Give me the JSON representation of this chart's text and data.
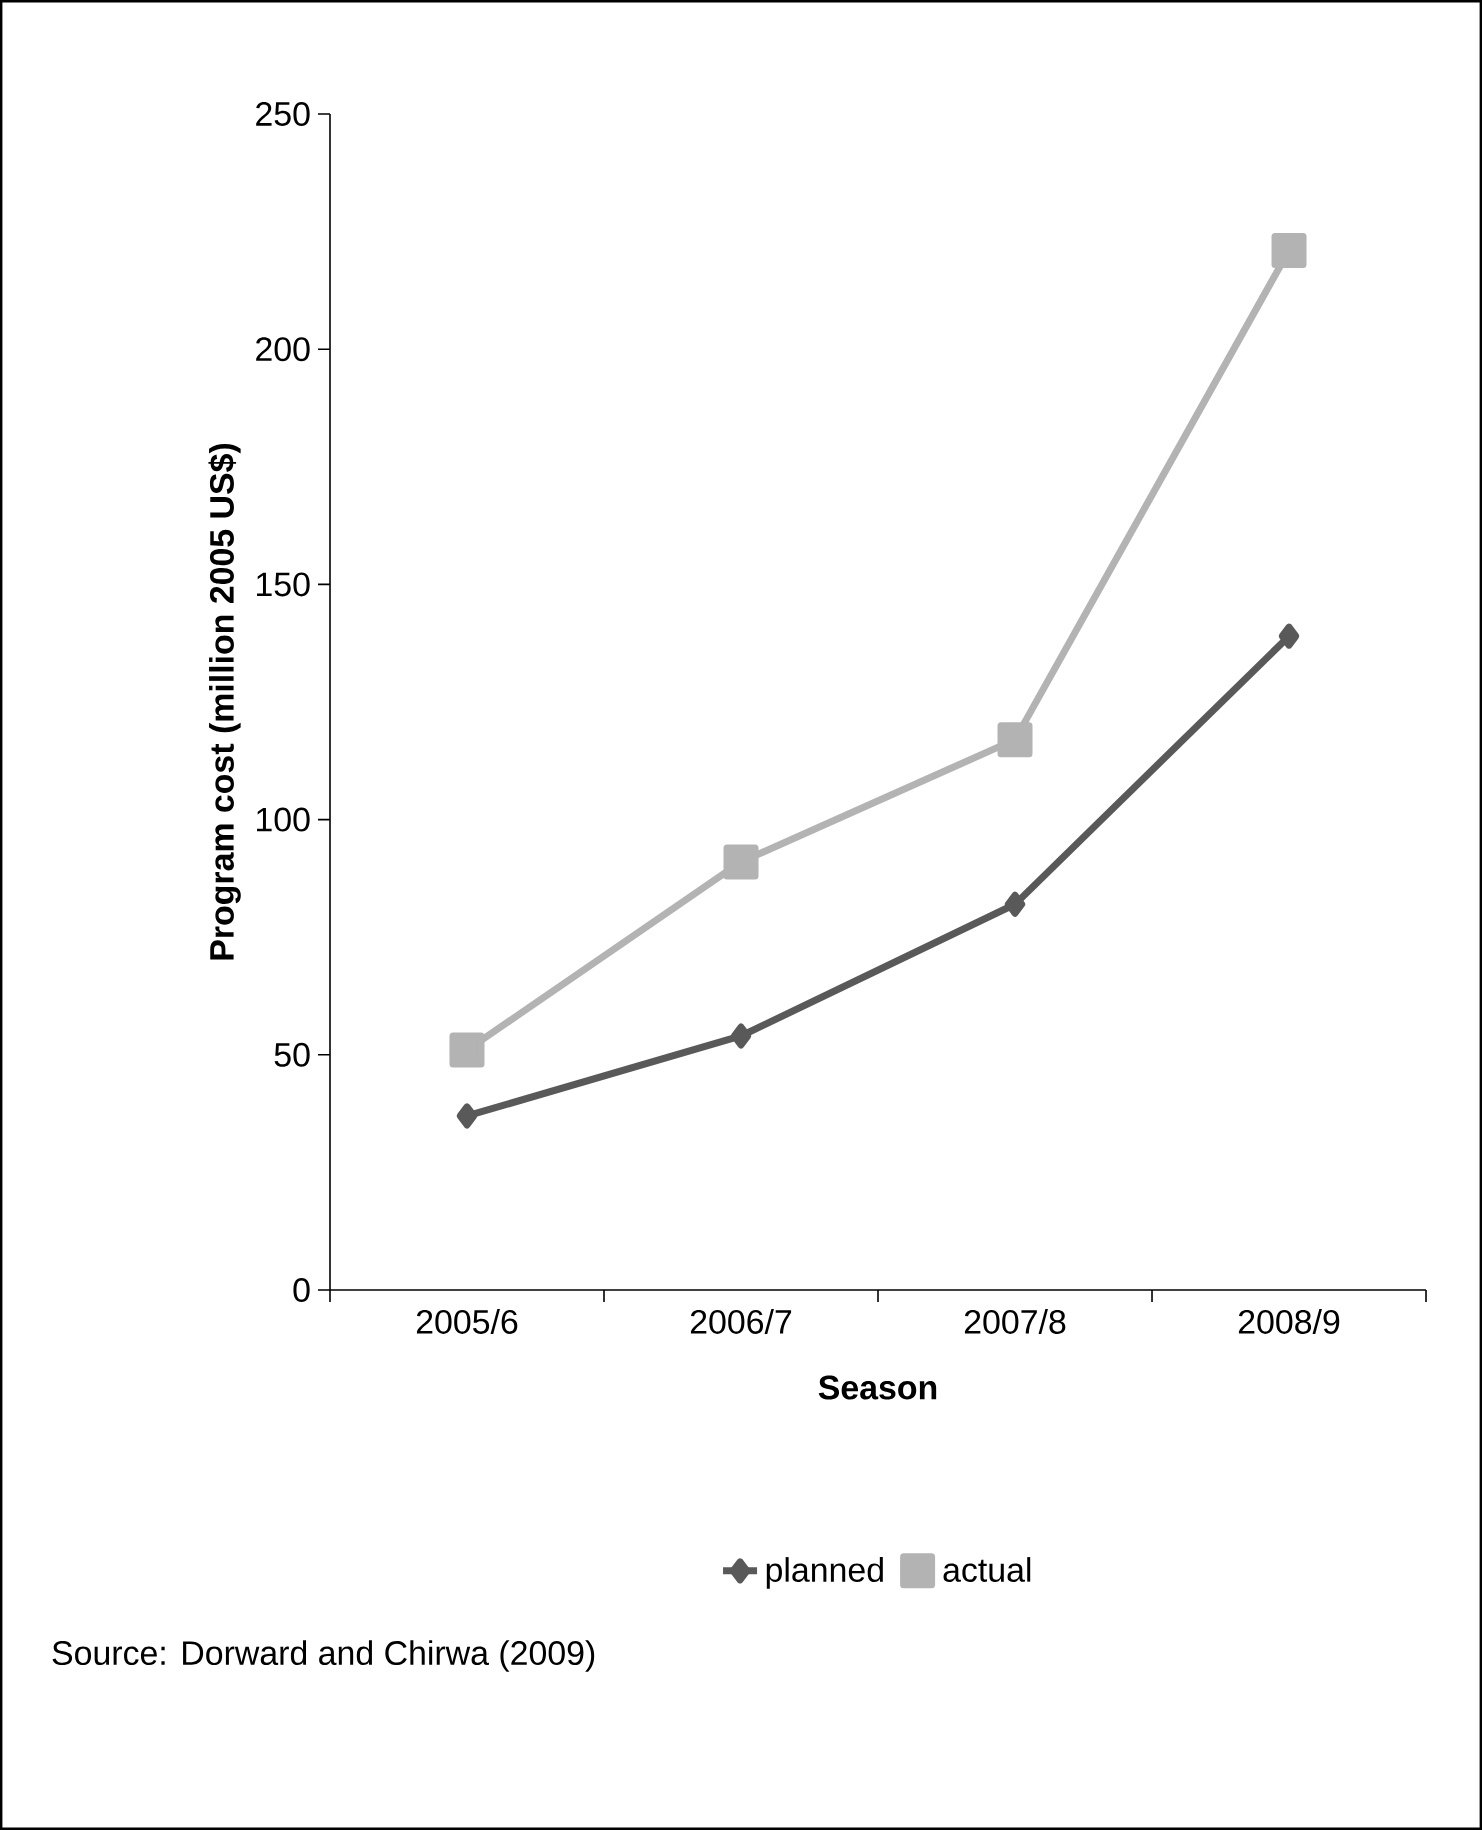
{
  "chart_data": {
    "type": "line",
    "xlabel": "Season",
    "ylabel": "Program cost (million 2005 US$)",
    "categories": [
      "2005/6",
      "2006/7",
      "2007/8",
      "2008/9"
    ],
    "series": [
      {
        "name": "planned",
        "color": "#595959",
        "marker": "diamond",
        "values": [
          37,
          54,
          82,
          139
        ]
      },
      {
        "name": "actual",
        "color": "#b3b3b3",
        "marker": "square",
        "values": [
          51,
          91,
          117,
          221
        ]
      }
    ],
    "ylim": [
      0,
      250
    ],
    "yticks": [
      0,
      50,
      100,
      150,
      200,
      250
    ],
    "grid": false,
    "legend": "bottom",
    "annotations": [
      "Source: Dorward and Chirwa (2009)"
    ]
  }
}
